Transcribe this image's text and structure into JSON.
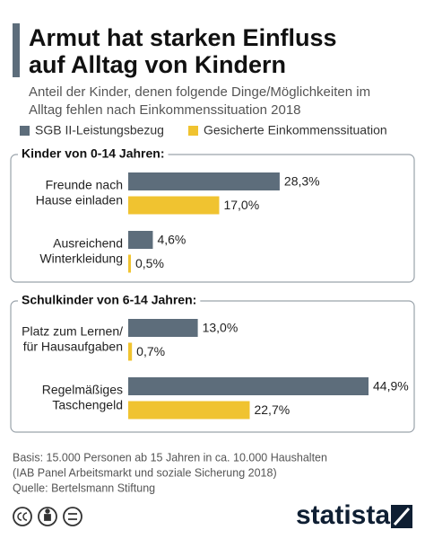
{
  "header": {
    "title": [
      "Armut hat starken Einfluss",
      "auf Alltag von Kindern"
    ],
    "subtitle": [
      "Anteil der Kinder, denen folgende Dinge/Möglichkeiten im",
      "Alltag fehlen nach Einkommenssituation 2018"
    ]
  },
  "chart_data": [
    {
      "type": "bar",
      "title": "Kinder von 0-14 Jahren:",
      "categories": [
        [
          "Freunde nach",
          "Hause einladen"
        ],
        [
          "Ausreichend",
          "Winterkleidung"
        ]
      ],
      "series": [
        {
          "name": "SGB II-Leistungsbezug",
          "color": "#5d6d7b",
          "values": [
            28.3,
            4.6
          ],
          "value_labels": [
            "28,3%",
            "4,6%"
          ]
        },
        {
          "name": "Gesicherte Einkommenssituation",
          "color": "#f0c330",
          "values": [
            17.0,
            0.5
          ],
          "value_labels": [
            "17,0%",
            "0,5%"
          ]
        }
      ]
    },
    {
      "type": "bar",
      "title": "Schulkinder von 6-14 Jahren:",
      "categories": [
        [
          "Platz zum Lernen/",
          "für Hausaufgaben"
        ],
        [
          "Regelmäßiges",
          "Taschengeld"
        ]
      ],
      "series": [
        {
          "name": "SGB II-Leistungsbezug",
          "color": "#5d6d7b",
          "values": [
            13.0,
            44.9
          ],
          "value_labels": [
            "13,0%",
            "44,9%"
          ]
        },
        {
          "name": "Gesicherte Einkommenssituation",
          "color": "#f0c330",
          "values": [
            0.7,
            22.7
          ],
          "value_labels": [
            "0,7%",
            "22,7%"
          ]
        }
      ]
    }
  ],
  "footer": {
    "notes": [
      "Basis: 15.000 Personen ab 15 Jahren in ca. 10.000 Haushalten",
      "(IAB Panel Arbeitsmarkt und soziale Sicherung 2018)",
      "Quelle: Bertelsmann Stiftung"
    ],
    "brand": "statista"
  }
}
